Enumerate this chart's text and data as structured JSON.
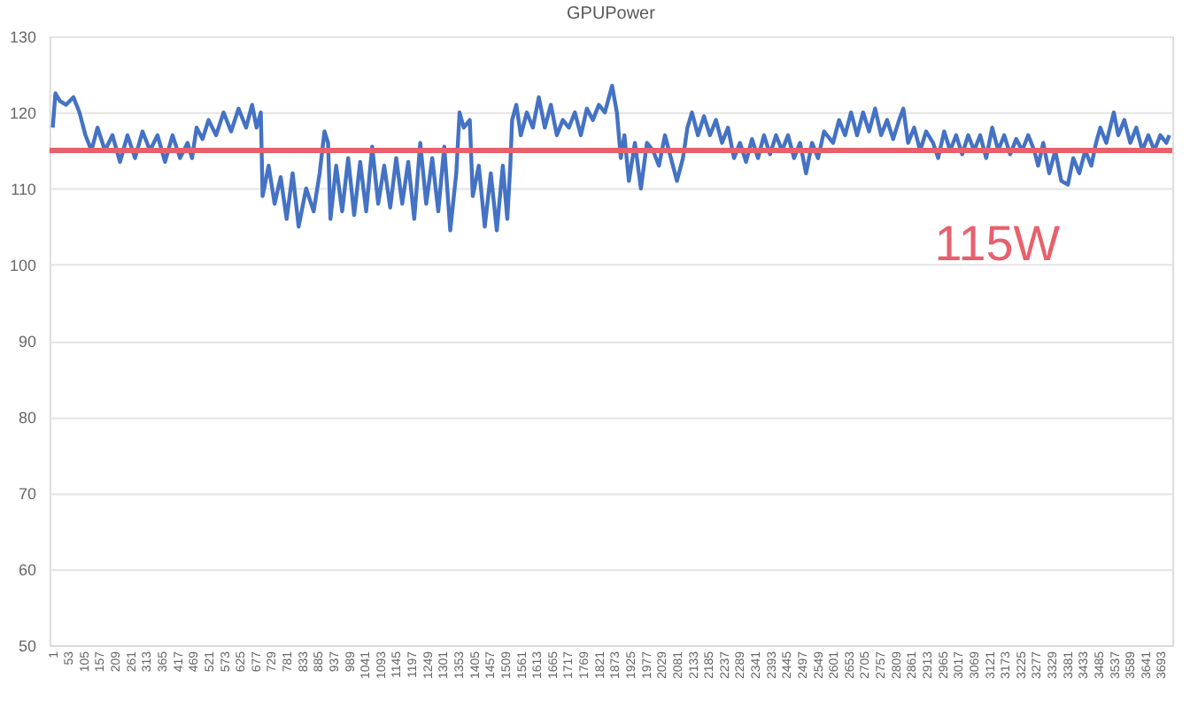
{
  "chart_data": {
    "type": "line",
    "title": "GPUPower",
    "x": [
      1,
      10,
      25,
      45,
      70,
      90,
      110,
      130,
      150,
      175,
      200,
      225,
      250,
      275,
      300,
      325,
      350,
      375,
      400,
      425,
      450,
      465,
      480,
      500,
      520,
      545,
      570,
      595,
      620,
      645,
      665,
      680,
      694,
      700,
      720,
      740,
      760,
      780,
      800,
      820,
      845,
      870,
      890,
      906,
      918,
      926,
      945,
      965,
      985,
      1005,
      1025,
      1045,
      1065,
      1085,
      1105,
      1125,
      1145,
      1165,
      1185,
      1205,
      1225,
      1245,
      1265,
      1285,
      1305,
      1325,
      1345,
      1356,
      1370,
      1390,
      1400,
      1420,
      1440,
      1460,
      1480,
      1500,
      1515,
      1525,
      1531,
      1545,
      1560,
      1580,
      1600,
      1620,
      1640,
      1660,
      1680,
      1700,
      1720,
      1740,
      1760,
      1780,
      1800,
      1820,
      1840,
      1864,
      1880,
      1893,
      1905,
      1920,
      1940,
      1960,
      1980,
      2000,
      2020,
      2040,
      2060,
      2080,
      2100,
      2115,
      2130,
      2150,
      2170,
      2190,
      2210,
      2230,
      2250,
      2270,
      2290,
      2310,
      2330,
      2350,
      2370,
      2390,
      2410,
      2430,
      2450,
      2470,
      2490,
      2510,
      2530,
      2550,
      2570,
      2600,
      2620,
      2640,
      2660,
      2680,
      2700,
      2720,
      2740,
      2760,
      2780,
      2800,
      2820,
      2834,
      2850,
      2870,
      2890,
      2910,
      2933,
      2950,
      2970,
      2990,
      3010,
      3030,
      3050,
      3070,
      3090,
      3110,
      3130,
      3150,
      3170,
      3190,
      3210,
      3230,
      3250,
      3270,
      3283,
      3300,
      3320,
      3340,
      3360,
      3382,
      3400,
      3420,
      3440,
      3460,
      3476,
      3490,
      3510,
      3535,
      3550,
      3570,
      3590,
      3610,
      3630,
      3650,
      3670,
      3690,
      3710,
      3720
    ],
    "series": [
      {
        "color": "#4472c4",
        "values": [
          118,
          122.5,
          121.5,
          121,
          122,
          120,
          117,
          115,
          118,
          115,
          117,
          113.5,
          117,
          114,
          117.5,
          115,
          117,
          113.5,
          117,
          114,
          116,
          114,
          118,
          116.5,
          119,
          117,
          120,
          117.5,
          120.5,
          118,
          121,
          118,
          120,
          109,
          113,
          108,
          111.5,
          106,
          112,
          105,
          110,
          107,
          112,
          117.5,
          116,
          106,
          113,
          107,
          114,
          106.5,
          113.5,
          107,
          115.5,
          108,
          113,
          107.5,
          114,
          108,
          113.5,
          106,
          116,
          108,
          114,
          107,
          115.5,
          104.5,
          112,
          120,
          118,
          119,
          109,
          113,
          105,
          112,
          104.5,
          113,
          106,
          113,
          119,
          121,
          117,
          120,
          118,
          122,
          118,
          121,
          117,
          119,
          118,
          120,
          117,
          120.5,
          119,
          121,
          120,
          123.5,
          120,
          114,
          117,
          111,
          116,
          110,
          116,
          115,
          113,
          117,
          114,
          111,
          114,
          118,
          120,
          117,
          119.5,
          117,
          119,
          116,
          118,
          114,
          116,
          113.5,
          116.5,
          114,
          117,
          114.5,
          117,
          115,
          117,
          114,
          116,
          112,
          116,
          114,
          117.5,
          116,
          119,
          117,
          120,
          117,
          120,
          117.5,
          120.5,
          117,
          119,
          116.5,
          119,
          120.5,
          116,
          118,
          115,
          117.5,
          116,
          114,
          117.5,
          115,
          117,
          114.5,
          117,
          115,
          117,
          114,
          118,
          115,
          117,
          114.5,
          116.5,
          115,
          117,
          115,
          113,
          116,
          112,
          115,
          111,
          110.5,
          114,
          112,
          115,
          113,
          116,
          118,
          116,
          120,
          117,
          119,
          116,
          118,
          115,
          117,
          115,
          117,
          116,
          117
        ]
      }
    ],
    "xlim": [
      -10,
      3730
    ],
    "xticks": [
      1,
      53,
      105,
      157,
      209,
      261,
      313,
      365,
      417,
      469,
      521,
      573,
      625,
      677,
      729,
      781,
      833,
      885,
      937,
      989,
      1041,
      1093,
      1145,
      1197,
      1249,
      1301,
      1353,
      1405,
      1457,
      1509,
      1561,
      1613,
      1665,
      1717,
      1769,
      1821,
      1873,
      1925,
      1977,
      2029,
      2081,
      2133,
      2185,
      2237,
      2289,
      2341,
      2393,
      2445,
      2497,
      2549,
      2601,
      2653,
      2705,
      2757,
      2809,
      2861,
      2913,
      2965,
      3017,
      3069,
      3121,
      3173,
      3225,
      3277,
      3329,
      3381,
      3433,
      3485,
      3537,
      3589,
      3641,
      3693
    ],
    "ylim": [
      50,
      130
    ],
    "yticks": [
      50,
      60,
      70,
      80,
      90,
      100,
      110,
      120,
      130
    ],
    "grid": "y",
    "line_style": "solid",
    "marker": "none",
    "ref_lines": [
      {
        "axis": "y",
        "value": 115,
        "label": "115W",
        "color": "#e8606c"
      }
    ]
  }
}
